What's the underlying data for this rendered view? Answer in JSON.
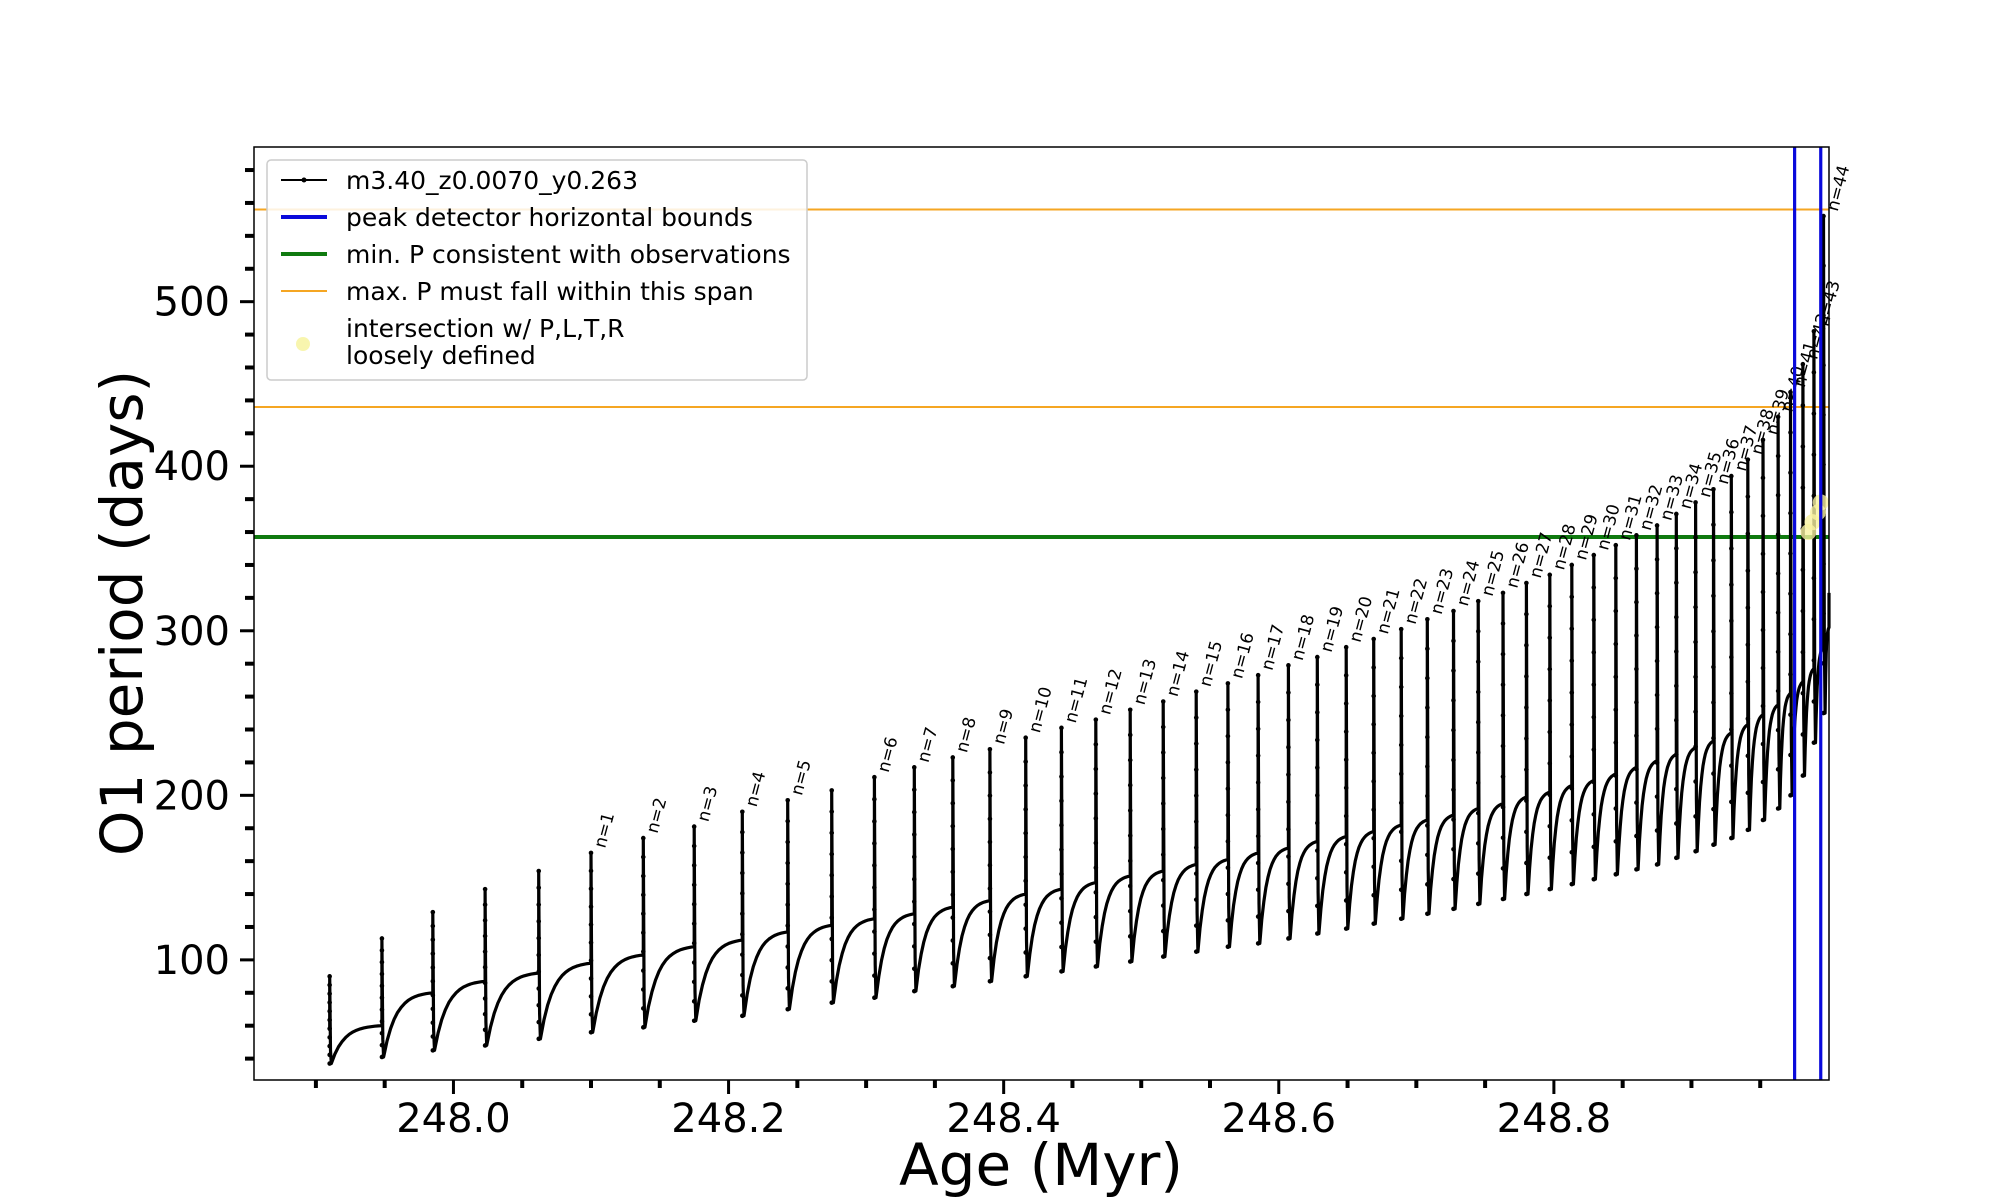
{
  "chart_data": {
    "type": "line",
    "xlabel": "Age (Myr)",
    "ylabel": "O1 period (days)",
    "xlim": [
      247.855,
      249.0
    ],
    "ylim": [
      27,
      594
    ],
    "xticks": [
      248.0,
      248.2,
      248.4,
      248.6,
      248.8
    ],
    "xtick_labels": [
      "248.0",
      "248.2",
      "248.4",
      "248.6",
      "248.8"
    ],
    "yticks": [
      100,
      200,
      300,
      400,
      500
    ],
    "ytick_labels": [
      "100",
      "200",
      "300",
      "400",
      "500"
    ],
    "grid": false,
    "legend_location": "upper left",
    "colors": {
      "track": "#000000",
      "peak_bounds": "#0a0adb",
      "min_p": "#0f7a0f",
      "max_p_span": "#f5a623",
      "intersection": "#f7f3a0"
    },
    "series": [
      {
        "name": "m3.40_z0.0070_y0.263",
        "style": "black line with small dot markers",
        "pulses": [
          {
            "x": 247.91,
            "min": 37,
            "plateau": 60,
            "peak": 90
          },
          {
            "x": 247.948,
            "min": 41,
            "plateau": 80,
            "peak": 113
          },
          {
            "x": 247.985,
            "min": 45,
            "plateau": 87,
            "peak": 129
          },
          {
            "x": 248.023,
            "min": 48,
            "plateau": 92,
            "peak": 143
          },
          {
            "x": 248.062,
            "min": 52,
            "plateau": 98,
            "peak": 154
          },
          {
            "x": 248.1,
            "min": 56,
            "plateau": 103,
            "peak": 165,
            "label": "n=1"
          },
          {
            "x": 248.138,
            "min": 59,
            "plateau": 108,
            "peak": 174,
            "label": "n=2"
          },
          {
            "x": 248.175,
            "min": 63,
            "plateau": 112,
            "peak": 181,
            "label": "n=3"
          },
          {
            "x": 248.21,
            "min": 66,
            "plateau": 117,
            "peak": 190,
            "label": "n=4"
          },
          {
            "x": 248.243,
            "min": 70,
            "plateau": 121,
            "peak": 197,
            "label": "n=5"
          },
          {
            "x": 248.275,
            "min": 74,
            "plateau": 125,
            "peak": 203
          },
          {
            "x": 248.306,
            "min": 77,
            "plateau": 128,
            "peak": 211,
            "label": "n=6"
          },
          {
            "x": 248.335,
            "min": 81,
            "plateau": 132,
            "peak": 217,
            "label": "n=7"
          },
          {
            "x": 248.363,
            "min": 84,
            "plateau": 136,
            "peak": 223,
            "label": "n=8"
          },
          {
            "x": 248.39,
            "min": 87,
            "plateau": 140,
            "peak": 228,
            "label": "n=9"
          },
          {
            "x": 248.416,
            "min": 90,
            "plateau": 143,
            "peak": 235,
            "label": "n=10"
          },
          {
            "x": 248.442,
            "min": 93,
            "plateau": 147,
            "peak": 241,
            "label": "n=11"
          },
          {
            "x": 248.467,
            "min": 96,
            "plateau": 151,
            "peak": 246,
            "label": "n=12"
          },
          {
            "x": 248.492,
            "min": 99,
            "plateau": 154,
            "peak": 252,
            "label": "n=13"
          },
          {
            "x": 248.516,
            "min": 102,
            "plateau": 158,
            "peak": 257,
            "label": "n=14"
          },
          {
            "x": 248.54,
            "min": 105,
            "plateau": 161,
            "peak": 263,
            "label": "n=15"
          },
          {
            "x": 248.563,
            "min": 108,
            "plateau": 165,
            "peak": 268,
            "label": "n=16"
          },
          {
            "x": 248.585,
            "min": 110,
            "plateau": 168,
            "peak": 273,
            "label": "n=17"
          },
          {
            "x": 248.607,
            "min": 113,
            "plateau": 172,
            "peak": 279,
            "label": "n=18"
          },
          {
            "x": 248.628,
            "min": 116,
            "plateau": 175,
            "peak": 284,
            "label": "n=19"
          },
          {
            "x": 248.649,
            "min": 119,
            "plateau": 178,
            "peak": 290,
            "label": "n=20"
          },
          {
            "x": 248.669,
            "min": 122,
            "plateau": 182,
            "peak": 295,
            "label": "n=21"
          },
          {
            "x": 248.689,
            "min": 125,
            "plateau": 185,
            "peak": 301,
            "label": "n=22"
          },
          {
            "x": 248.708,
            "min": 128,
            "plateau": 188,
            "peak": 307,
            "label": "n=23"
          },
          {
            "x": 248.727,
            "min": 131,
            "plateau": 192,
            "peak": 312,
            "label": "n=24"
          },
          {
            "x": 248.745,
            "min": 134,
            "plateau": 195,
            "peak": 318,
            "label": "n=25"
          },
          {
            "x": 248.763,
            "min": 137,
            "plateau": 199,
            "peak": 323,
            "label": "n=26"
          },
          {
            "x": 248.78,
            "min": 140,
            "plateau": 202,
            "peak": 329,
            "label": "n=27"
          },
          {
            "x": 248.797,
            "min": 143,
            "plateau": 206,
            "peak": 334,
            "label": "n=28"
          },
          {
            "x": 248.813,
            "min": 146,
            "plateau": 209,
            "peak": 340,
            "label": "n=29"
          },
          {
            "x": 248.829,
            "min": 149,
            "plateau": 213,
            "peak": 346,
            "label": "n=30"
          },
          {
            "x": 248.845,
            "min": 152,
            "plateau": 217,
            "peak": 352,
            "label": "n=31"
          },
          {
            "x": 248.86,
            "min": 155,
            "plateau": 221,
            "peak": 358,
            "label": "n=32"
          },
          {
            "x": 248.875,
            "min": 158,
            "plateau": 225,
            "peak": 364,
            "label": "n=33"
          },
          {
            "x": 248.889,
            "min": 162,
            "plateau": 229,
            "peak": 371,
            "label": "n=34"
          },
          {
            "x": 248.903,
            "min": 166,
            "plateau": 233,
            "peak": 378,
            "label": "n=35"
          },
          {
            "x": 248.916,
            "min": 170,
            "plateau": 238,
            "peak": 386,
            "label": "n=36"
          },
          {
            "x": 248.929,
            "min": 174,
            "plateau": 243,
            "peak": 394,
            "label": "n=37"
          },
          {
            "x": 248.941,
            "min": 179,
            "plateau": 249,
            "peak": 404,
            "label": "n=38"
          },
          {
            "x": 248.952,
            "min": 185,
            "plateau": 255,
            "peak": 416,
            "label": "n=39"
          },
          {
            "x": 248.963,
            "min": 192,
            "plateau": 262,
            "peak": 430,
            "label": "n=40"
          },
          {
            "x": 248.972,
            "min": 200,
            "plateau": 269,
            "peak": 445,
            "label": "n=41"
          },
          {
            "x": 248.981,
            "min": 212,
            "plateau": 277,
            "peak": 462,
            "label": "n=42"
          },
          {
            "x": 248.989,
            "min": 232,
            "plateau": 290,
            "peak": 482,
            "label": "n=43"
          },
          {
            "x": 248.996,
            "min": 250,
            "plateau": 302,
            "peak": 552,
            "label": "n=44"
          }
        ],
        "final": {
          "x": 249.0,
          "y": 323
        }
      },
      {
        "name": "peak detector horizontal bounds",
        "type": "vline",
        "x": [
          248.975,
          248.994
        ]
      },
      {
        "name": "min. P consistent with observations",
        "type": "hline",
        "y": 357
      },
      {
        "name": "max. P must fall within this span",
        "type": "hline",
        "y": [
          436,
          556
        ]
      },
      {
        "name": "intersection w/ P,L,T,R\nloosely defined",
        "type": "scatter",
        "x": [
          248.985,
          248.988,
          248.992,
          248.994
        ],
        "y": [
          360,
          366,
          372,
          378
        ]
      }
    ]
  }
}
